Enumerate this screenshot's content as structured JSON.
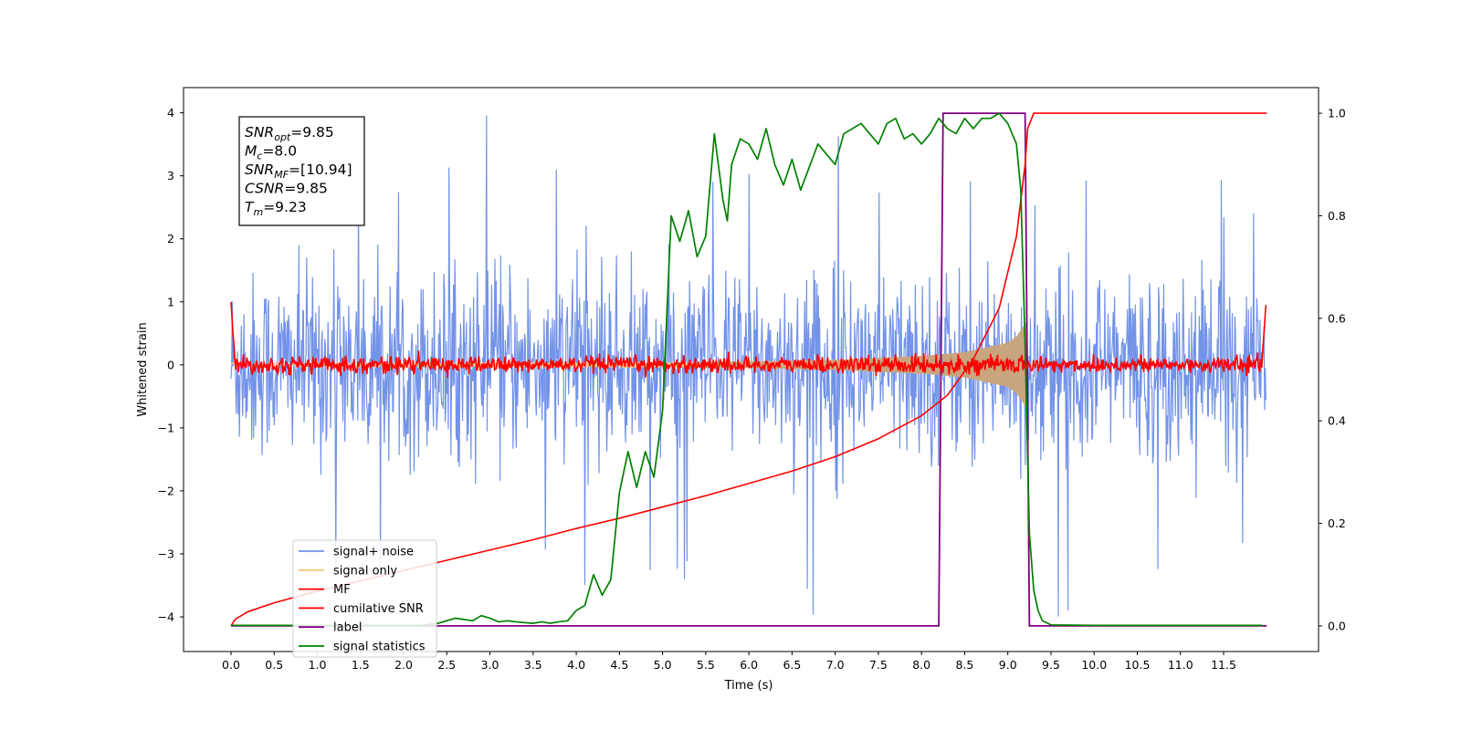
{
  "chart_data": {
    "type": "line",
    "xlabel": "Time (s)",
    "ylabel": "Whitened strain",
    "xlim": [
      -0.55,
      12.6
    ],
    "ylim": [
      -4.55,
      4.4
    ],
    "y2lim": [
      -0.05,
      1.05
    ],
    "x_ticks": [
      "0.0",
      "0.5",
      "1.0",
      "1.5",
      "2.0",
      "2.5",
      "3.0",
      "3.5",
      "4.0",
      "4.5",
      "5.0",
      "5.5",
      "6.0",
      "6.5",
      "7.0",
      "7.5",
      "8.0",
      "8.5",
      "9.0",
      "9.5",
      "10.0",
      "10.5",
      "11.0",
      "11.5"
    ],
    "y_ticks": [
      "4",
      "3",
      "2",
      "1",
      "0",
      "−1",
      "−2",
      "−3",
      "−4"
    ],
    "y2_ticks": [
      "1.0",
      "0.8",
      "0.6",
      "0.4",
      "0.2",
      "0.0"
    ],
    "grid": false,
    "legend_position": "lower-left",
    "annotation_box": [
      {
        "base": "SNR",
        "sub": "opt",
        "value": "=9.85"
      },
      {
        "base": "M",
        "sub": "c",
        "value": "=8.0"
      },
      {
        "base": "SNR",
        "sub": "MF",
        "value": "=[10.94]"
      },
      {
        "base": "CSNR",
        "sub": "",
        "value": "=9.85"
      },
      {
        "base": "T",
        "sub": "m",
        "value": "=9.23"
      }
    ],
    "series": [
      {
        "name": "signal+ noise",
        "axis": "left",
        "color": "#7393e9",
        "kind": "noise",
        "x_range": [
          0.0,
          11.99
        ],
        "amplitude_typical": 1.9,
        "amplitude_peak": 4.0
      },
      {
        "name": "signal only",
        "axis": "left",
        "color": "#f2c87a",
        "kind": "chirp",
        "x_range": [
          0.0,
          9.23
        ],
        "envelope": {
          "x": [
            0,
            6,
            7,
            8,
            8.5,
            9.0,
            9.1,
            9.2,
            9.23
          ],
          "y": [
            0.03,
            0.05,
            0.08,
            0.14,
            0.2,
            0.35,
            0.45,
            0.65,
            0.72
          ]
        }
      },
      {
        "name": "MF",
        "axis": "left",
        "color": "#ff0000",
        "kind": "noise",
        "x_range": [
          0.0,
          11.99
        ],
        "amplitude_typical": 0.12,
        "edges": {
          "start": 1.0,
          "end": 0.95
        }
      },
      {
        "name": "cumilative SNR",
        "axis": "right",
        "color": "#ff0000",
        "x": [
          0.0,
          0.05,
          0.2,
          0.5,
          1.0,
          1.5,
          2.0,
          2.5,
          3.0,
          3.5,
          4.0,
          4.5,
          5.0,
          5.5,
          6.0,
          6.5,
          7.0,
          7.5,
          8.0,
          8.3,
          8.6,
          8.9,
          9.1,
          9.2,
          9.23,
          9.3,
          12.0
        ],
        "y": [
          0.0,
          0.013,
          0.028,
          0.045,
          0.068,
          0.088,
          0.108,
          0.128,
          0.148,
          0.168,
          0.19,
          0.21,
          0.232,
          0.254,
          0.278,
          0.302,
          0.33,
          0.365,
          0.41,
          0.45,
          0.52,
          0.62,
          0.76,
          0.9,
          0.97,
          1.0,
          1.0
        ]
      },
      {
        "name": "label",
        "axis": "right",
        "color": "#800080",
        "x": [
          0.0,
          8.2,
          8.25,
          9.2,
          9.25,
          12.0
        ],
        "y": [
          0.0,
          0.0,
          1.0,
          1.0,
          0.0,
          0.0
        ]
      },
      {
        "name": "signal statistics",
        "axis": "right",
        "color": "#008000",
        "x": [
          0.0,
          2.2,
          2.4,
          2.6,
          2.8,
          2.9,
          3.0,
          3.1,
          3.2,
          3.3,
          3.5,
          3.6,
          3.7,
          3.8,
          3.9,
          4.0,
          4.1,
          4.2,
          4.3,
          4.4,
          4.5,
          4.6,
          4.7,
          4.8,
          4.9,
          5.0,
          5.1,
          5.2,
          5.3,
          5.4,
          5.5,
          5.6,
          5.7,
          5.75,
          5.8,
          5.9,
          6.0,
          6.1,
          6.2,
          6.3,
          6.4,
          6.5,
          6.6,
          6.8,
          6.9,
          7.0,
          7.1,
          7.2,
          7.3,
          7.4,
          7.5,
          7.6,
          7.7,
          7.8,
          7.9,
          8.0,
          8.1,
          8.2,
          8.3,
          8.4,
          8.5,
          8.6,
          8.7,
          8.8,
          8.9,
          9.0,
          9.1,
          9.15,
          9.2,
          9.25,
          9.3,
          9.35,
          9.4,
          9.5,
          10.0,
          11.0,
          11.95
        ],
        "y": [
          0.001,
          0.001,
          0.005,
          0.015,
          0.01,
          0.02,
          0.015,
          0.008,
          0.01,
          0.008,
          0.005,
          0.008,
          0.005,
          0.008,
          0.01,
          0.03,
          0.04,
          0.1,
          0.06,
          0.09,
          0.26,
          0.34,
          0.27,
          0.34,
          0.29,
          0.42,
          0.8,
          0.75,
          0.81,
          0.72,
          0.76,
          0.96,
          0.83,
          0.79,
          0.9,
          0.95,
          0.94,
          0.91,
          0.97,
          0.9,
          0.86,
          0.91,
          0.85,
          0.94,
          0.92,
          0.9,
          0.96,
          0.97,
          0.98,
          0.96,
          0.94,
          0.98,
          0.99,
          0.95,
          0.96,
          0.94,
          0.96,
          0.99,
          0.97,
          0.96,
          0.99,
          0.97,
          0.99,
          0.99,
          1.0,
          0.98,
          0.94,
          0.85,
          0.55,
          0.18,
          0.07,
          0.03,
          0.01,
          0.002,
          0.001,
          0.001,
          0.001
        ]
      }
    ]
  }
}
